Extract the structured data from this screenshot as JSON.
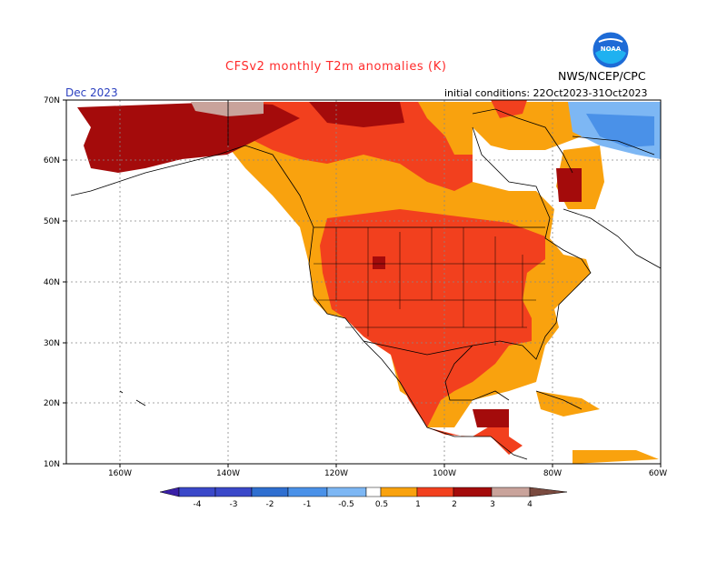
{
  "header": {
    "title": "CFSv2 monthly T2m anomalies (K)",
    "org": "NWS/NCEP/CPC",
    "month": "Dec 2023",
    "initial_conditions": "initial conditions: 22Oct2023-31Oct2023",
    "logo_text": "NOAA"
  },
  "colors": {
    "title": "#ff2a2a",
    "pos_05_1": "#f9a20e",
    "pos_1_2": "#f2401e",
    "pos_2_3": "#a40b0b",
    "pos_3_4": "#c9a39b",
    "neg_05_1": "#7db7f4",
    "neg_1_2": "#4a91e8",
    "land_lines": "#000000",
    "grid": "#888888"
  },
  "axes": {
    "lat_labels": [
      "70N",
      "60N",
      "50N",
      "40N",
      "30N",
      "20N",
      "10N"
    ],
    "lon_labels": [
      "160W",
      "140W",
      "120W",
      "100W",
      "80W",
      "60W"
    ]
  },
  "colorbar": {
    "labels": [
      "-4",
      "-3",
      "-2",
      "-1",
      "-0.5",
      "0.5",
      "1",
      "2",
      "3",
      "4"
    ],
    "bin_colors": [
      "#3a20a8",
      "#3a48c9",
      "#2f6fd0",
      "#4a91e8",
      "#7db7f4",
      "#ffffff",
      "#f9a20e",
      "#f2401e",
      "#a40b0b",
      "#c9a39b",
      "#7a4a3f"
    ]
  }
}
